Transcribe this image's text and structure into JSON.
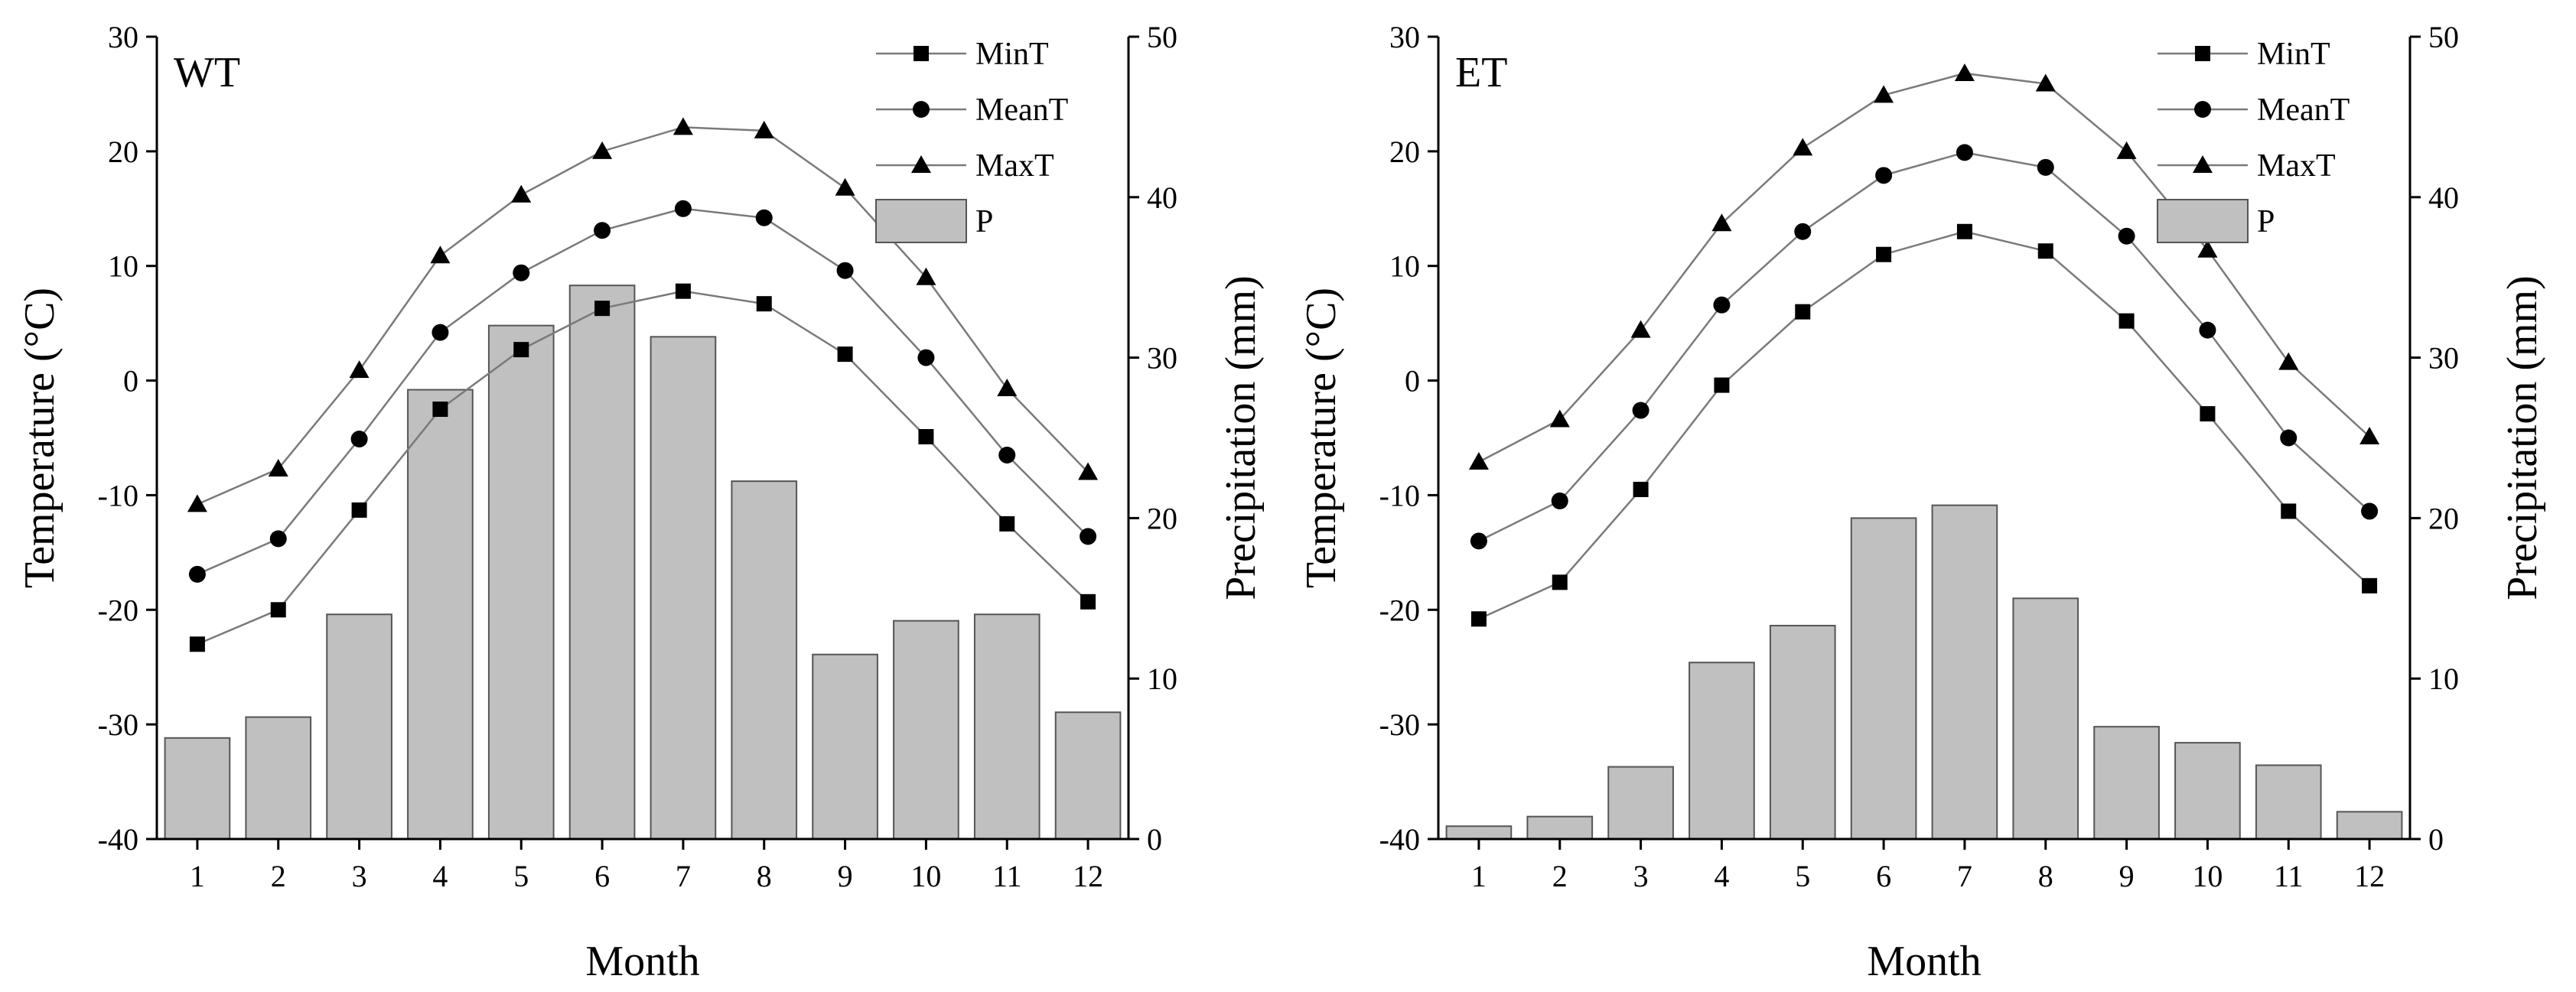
{
  "chart_data": [
    {
      "type": "bar+line",
      "panel_label": "WT",
      "categories": [
        "1",
        "2",
        "3",
        "4",
        "5",
        "6",
        "7",
        "8",
        "9",
        "10",
        "11",
        "12"
      ],
      "series": [
        {
          "name": "MinT",
          "marker": "square",
          "axis": "left",
          "values": [
            -23,
            -20,
            -11.3,
            -2.5,
            2.7,
            6.3,
            7.8,
            6.7,
            2.3,
            -4.9,
            -12.5,
            -19.3
          ]
        },
        {
          "name": "MeanT",
          "marker": "circle",
          "axis": "left",
          "values": [
            -16.9,
            -13.8,
            -5.1,
            4.2,
            9.4,
            13.1,
            15,
            14.2,
            9.6,
            2,
            -6.5,
            -13.6
          ]
        },
        {
          "name": "MaxT",
          "marker": "triangle",
          "axis": "left",
          "values": [
            -10.8,
            -7.7,
            0.9,
            10.9,
            16.2,
            20,
            22.1,
            21.8,
            16.8,
            9,
            -0.7,
            -8
          ]
        },
        {
          "name": "P",
          "type": "bar",
          "axis": "right",
          "values": [
            6.3,
            7.6,
            14,
            28,
            32,
            34.5,
            31.3,
            22.3,
            11.5,
            13.6,
            14,
            7.9
          ]
        }
      ],
      "xlabel": "Month",
      "ylabel": "Temperature (°C)",
      "ylabel_right": "Precipitation (mm)",
      "ylim": [
        -40,
        30
      ],
      "ylim_right": [
        0,
        50
      ],
      "yticks": [
        "30",
        "20",
        "10",
        "0",
        "-10",
        "-20",
        "-30",
        "-40"
      ],
      "yticks_right": [
        "50",
        "40",
        "30",
        "20",
        "10",
        "0"
      ],
      "legend": [
        "MinT",
        "MeanT",
        "MaxT",
        "P"
      ],
      "legend_position": "top-right",
      "grid": false
    },
    {
      "type": "bar+line",
      "panel_label": "ET",
      "categories": [
        "1",
        "2",
        "3",
        "4",
        "5",
        "6",
        "7",
        "8",
        "9",
        "10",
        "11",
        "12"
      ],
      "series": [
        {
          "name": "MinT",
          "marker": "square",
          "axis": "left",
          "values": [
            -20.8,
            -17.6,
            -9.5,
            -0.4,
            6,
            11,
            13,
            11.3,
            5.2,
            -2.9,
            -11.4,
            -17.9
          ]
        },
        {
          "name": "MeanT",
          "marker": "circle",
          "axis": "left",
          "values": [
            -14,
            -10.5,
            -2.6,
            6.6,
            13,
            17.9,
            19.9,
            18.6,
            12.6,
            4.4,
            -5,
            -11.4
          ]
        },
        {
          "name": "MaxT",
          "marker": "triangle",
          "axis": "left",
          "values": [
            -7.1,
            -3.4,
            4.4,
            13.7,
            20.3,
            24.9,
            26.8,
            25.9,
            20,
            11.4,
            1.6,
            -4.9
          ]
        },
        {
          "name": "P",
          "type": "bar",
          "axis": "right",
          "values": [
            0.8,
            1.4,
            4.5,
            11,
            13.3,
            20,
            20.8,
            15,
            7,
            6,
            4.6,
            1.7
          ]
        }
      ],
      "xlabel": "Month",
      "ylabel": "Temperature (°C)",
      "ylabel_right": "Precipitation (mm)",
      "ylim": [
        -40,
        30
      ],
      "ylim_right": [
        0,
        50
      ],
      "yticks": [
        "30",
        "20",
        "10",
        "0",
        "-10",
        "-20",
        "-30",
        "-40"
      ],
      "yticks_right": [
        "50",
        "40",
        "30",
        "20",
        "10",
        "0"
      ],
      "legend": [
        "MinT",
        "MeanT",
        "MaxT",
        "P"
      ],
      "legend_position": "top-right",
      "grid": false
    }
  ]
}
